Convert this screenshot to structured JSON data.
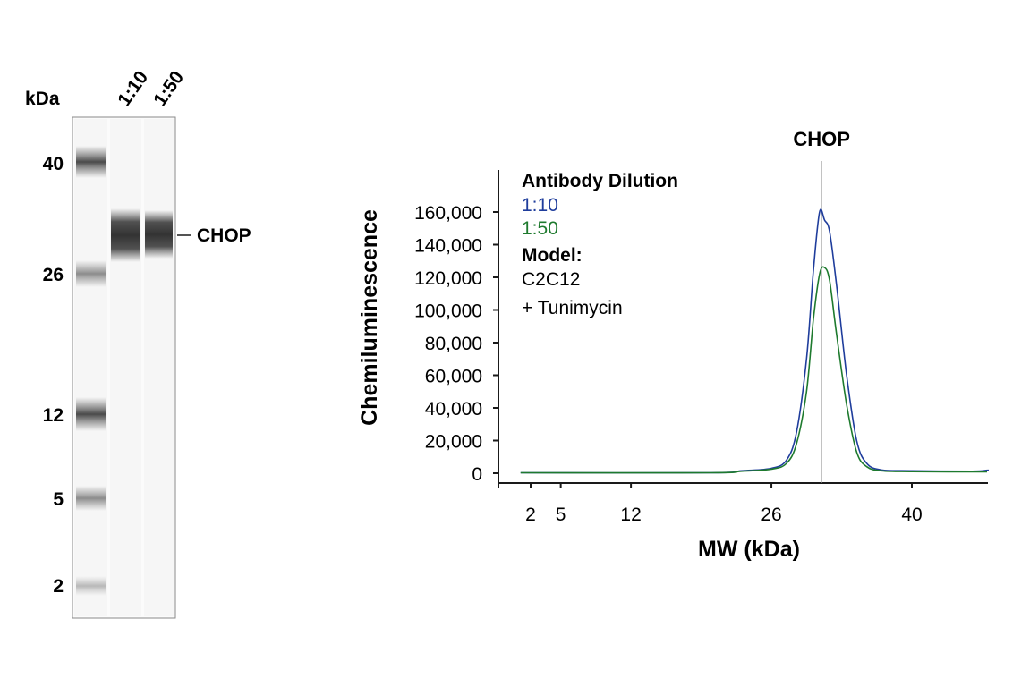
{
  "blot": {
    "units_label": "kDa",
    "lane_labels": [
      "1:10",
      "1:50"
    ],
    "ladder_marks": [
      "40",
      "26",
      "12",
      "5",
      "2"
    ],
    "target_label": "CHOP"
  },
  "chart_data": {
    "type": "line",
    "peak_label": "CHOP",
    "xlabel": "MW (kDa)",
    "ylabel": "Chemiluminescence",
    "x_ticks": [
      "2",
      "5",
      "12",
      "26",
      "40"
    ],
    "y_ticks": [
      "0",
      "20,000",
      "40,000",
      "60,000",
      "80,000",
      "100,000",
      "120,000",
      "140,000",
      "160,000"
    ],
    "ylim": [
      0,
      180000
    ],
    "grid": false,
    "legend": {
      "title": "Antibody Dilution",
      "placement": "top-left",
      "model_title": "Model:",
      "model_lines": [
        "C2C12",
        "+ Tunimycin"
      ]
    },
    "peak_x": 31,
    "series": [
      {
        "name": "1:10",
        "color": "#1f3d9c",
        "points": [
          [
            1,
            300
          ],
          [
            20,
            300
          ],
          [
            23,
            1500
          ],
          [
            26,
            3000
          ],
          [
            27.5,
            8000
          ],
          [
            28.5,
            25000
          ],
          [
            29.5,
            70000
          ],
          [
            30.2,
            125000
          ],
          [
            30.8,
            160000
          ],
          [
            31.3,
            155000
          ],
          [
            31.8,
            148000
          ],
          [
            32.5,
            115000
          ],
          [
            33.5,
            60000
          ],
          [
            34.5,
            20000
          ],
          [
            35.5,
            6000
          ],
          [
            37,
            2000
          ],
          [
            40,
            1500
          ],
          [
            46,
            1200
          ],
          [
            48,
            1800
          ],
          [
            50,
            1800
          ]
        ]
      },
      {
        "name": "1:50",
        "color": "#1e7a2e",
        "points": [
          [
            1,
            300
          ],
          [
            20,
            300
          ],
          [
            23,
            1200
          ],
          [
            26,
            2500
          ],
          [
            27.5,
            6000
          ],
          [
            28.5,
            18000
          ],
          [
            29.5,
            50000
          ],
          [
            30.2,
            95000
          ],
          [
            30.8,
            122000
          ],
          [
            31.3,
            126000
          ],
          [
            31.8,
            118000
          ],
          [
            32.5,
            85000
          ],
          [
            33.5,
            42000
          ],
          [
            34.5,
            13000
          ],
          [
            35.5,
            4000
          ],
          [
            37,
            1500
          ],
          [
            40,
            1000
          ],
          [
            50,
            800
          ]
        ]
      }
    ]
  }
}
